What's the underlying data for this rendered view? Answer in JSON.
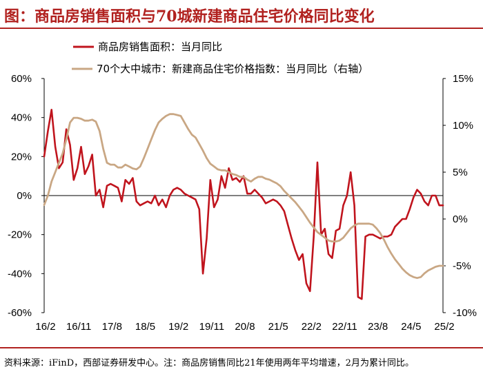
{
  "title": "图：商品房销售面积与70城新建商品住宅价格同比变化",
  "source": "资料来源：iFinD，西部证券研发中心。注：商品房销售同比21年使用两年平均增速，2月为累计同比。",
  "chart_data": {
    "type": "line",
    "x": [
      "2016-02",
      "2016-03",
      "2016-04",
      "2016-05",
      "2016-06",
      "2016-07",
      "2016-08",
      "2016-09",
      "2016-10",
      "2016-11",
      "2016-12",
      "2017-01",
      "2017-02",
      "2017-03",
      "2017-04",
      "2017-05",
      "2017-06",
      "2017-07",
      "2017-08",
      "2017-09",
      "2017-10",
      "2017-11",
      "2017-12",
      "2018-01",
      "2018-02",
      "2018-03",
      "2018-04",
      "2018-05",
      "2018-06",
      "2018-07",
      "2018-08",
      "2018-09",
      "2018-10",
      "2018-11",
      "2018-12",
      "2019-01",
      "2019-02",
      "2019-03",
      "2019-04",
      "2019-05",
      "2019-06",
      "2019-07",
      "2019-08",
      "2019-09",
      "2019-10",
      "2019-11",
      "2019-12",
      "2020-01",
      "2020-02",
      "2020-03",
      "2020-04",
      "2020-05",
      "2020-06",
      "2020-07",
      "2020-08",
      "2020-09",
      "2020-10",
      "2020-11",
      "2020-12",
      "2021-01",
      "2021-02",
      "2021-03",
      "2021-04",
      "2021-05",
      "2021-06",
      "2021-07",
      "2021-08",
      "2021-09",
      "2021-10",
      "2021-11",
      "2021-12",
      "2022-01",
      "2022-02",
      "2022-03",
      "2022-04",
      "2022-05",
      "2022-06",
      "2022-07",
      "2022-08",
      "2022-09",
      "2022-10",
      "2022-11",
      "2022-12",
      "2023-01",
      "2023-02",
      "2023-03",
      "2023-04",
      "2023-05",
      "2023-06",
      "2023-07",
      "2023-08",
      "2023-09",
      "2023-10",
      "2023-11",
      "2023-12",
      "2024-01",
      "2024-02",
      "2024-03",
      "2024-04",
      "2024-05",
      "2024-06",
      "2024-07",
      "2024-08",
      "2024-09",
      "2024-10",
      "2024-11",
      "2024-12",
      "2025-01",
      "2025-02"
    ],
    "x_ticks": [
      "16/2",
      "16/11",
      "17/8",
      "18/5",
      "19/2",
      "19/11",
      "20/8",
      "21/5",
      "22/2",
      "22/11",
      "23/8",
      "24/5",
      "25/2"
    ],
    "series": [
      {
        "name": "商品房销售面积：当月同比",
        "color": "#c0141d",
        "axis": "left",
        "values": [
          20,
          33,
          44,
          25,
          14,
          17,
          34,
          26,
          8,
          14,
          25,
          11,
          15,
          21,
          0,
          3,
          -6,
          5,
          6,
          5,
          4,
          -3,
          8,
          6,
          9,
          -3,
          -5,
          -4,
          -3,
          -4,
          0,
          -5,
          -2,
          -6,
          0,
          3,
          4,
          3,
          1,
          0,
          -1,
          -2,
          -7,
          -40,
          -22,
          8,
          -6,
          -2,
          10,
          4,
          14,
          8,
          9,
          7,
          10,
          1,
          1,
          3,
          1,
          -1,
          -4,
          -3,
          -2,
          -3,
          -5,
          -8,
          -15,
          -22,
          -28,
          -33,
          -30,
          -45,
          -49,
          -21,
          17,
          -20,
          -17,
          -30,
          -32,
          -18,
          -17,
          -5,
          0,
          12,
          -5,
          -52,
          -53,
          -21,
          -20,
          -20,
          -21,
          -22,
          -21,
          -21,
          -20,
          -16,
          -14,
          -12,
          -12,
          -7,
          -1,
          3,
          1,
          -3,
          -5,
          0,
          0,
          -5,
          -5
        ],
        "values_note": ""
      },
      {
        "name": "70个大中城市：新建商品住宅价格指数：当月同比（右轴）",
        "color": "#c9a784",
        "axis": "right",
        "values": [
          1.5,
          2.5,
          4.0,
          5.0,
          6.0,
          7.0,
          8.5,
          10.3,
          10.8,
          10.8,
          10.7,
          10.5,
          10.5,
          10.6,
          10.4,
          9.4,
          7.5,
          6.0,
          5.8,
          5.8,
          5.5,
          5.5,
          5.8,
          5.6,
          5.4,
          5.3,
          5.6,
          6.5,
          7.5,
          8.5,
          9.5,
          10.3,
          10.7,
          11.0,
          11.2,
          11.2,
          11.1,
          11.0,
          10.3,
          9.6,
          9.0,
          8.7,
          8.0,
          7.3,
          6.5,
          5.9,
          5.6,
          5.3,
          5.2,
          5.2,
          5.0,
          4.8,
          4.7,
          4.5,
          4.5,
          4.2,
          4.0,
          4.3,
          4.5,
          4.5,
          4.3,
          4.2,
          4.0,
          3.8,
          3.5,
          3.0,
          2.6,
          2.2,
          1.8,
          1.3,
          0.8,
          0.2,
          -0.4,
          -0.9,
          -1.4,
          -1.7,
          -2.0,
          -2.3,
          -2.4,
          -2.4,
          -2.3,
          -2.0,
          -1.5,
          -1.0,
          -0.7,
          -0.5,
          -0.5,
          -0.5,
          -0.5,
          -0.6,
          -1.0,
          -1.5,
          -2.2,
          -3.0,
          -3.7,
          -4.3,
          -4.8,
          -5.3,
          -5.7,
          -6.0,
          -6.2,
          -6.3,
          -6.2,
          -5.8,
          -5.5,
          -5.3,
          -5.1,
          -5.0,
          -5.0
        ],
        "values_note": ""
      }
    ],
    "y_left": {
      "ticks": [
        "-60%",
        "-40%",
        "-20%",
        "0%",
        "20%",
        "40%",
        "60%"
      ],
      "min": -60,
      "max": 60
    },
    "y_right": {
      "ticks": [
        "-10%",
        "-5%",
        "0%",
        "5%",
        "10%",
        "15%"
      ],
      "min": -10,
      "max": 15
    },
    "grid": false,
    "legend": "top",
    "zero_line": true
  }
}
